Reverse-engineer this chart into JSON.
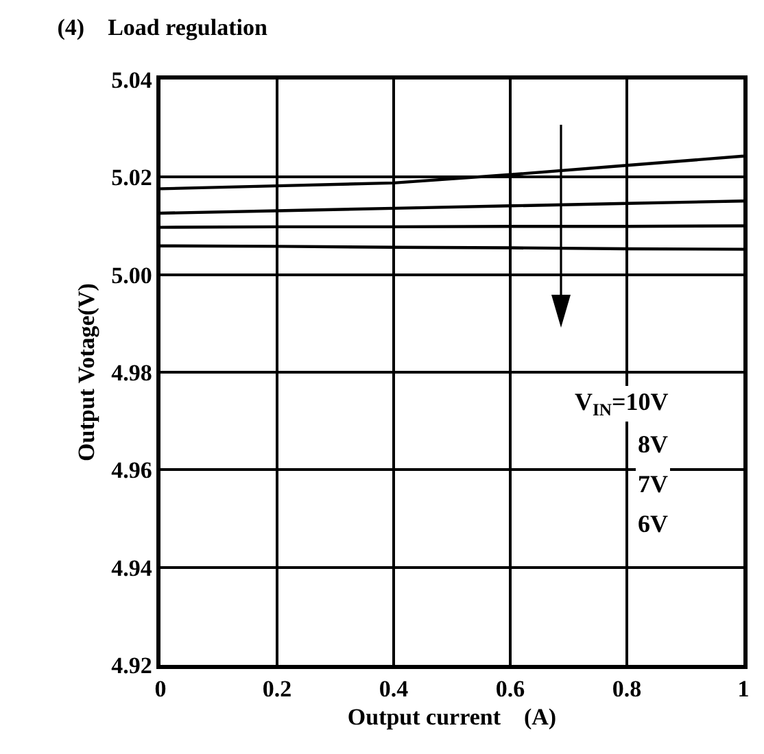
{
  "chart_data": {
    "type": "line",
    "title": "(4)    Load regulation",
    "xlabel": "Output current    (A)",
    "ylabel": "Output Votage(V)",
    "x": [
      0,
      0.2,
      0.4,
      0.6,
      0.8,
      1
    ],
    "series": [
      {
        "color": "#000000",
        "values": [
          5.0176,
          5.0182,
          5.0188,
          5.0205,
          5.0224,
          5.0243
        ]
      },
      {
        "color": "#000000",
        "values": [
          5.0126,
          5.0131,
          5.0136,
          5.0141,
          5.0146,
          5.0151
        ]
      },
      {
        "color": "#000000",
        "values": [
          5.0097,
          5.0098,
          5.0098,
          5.0099,
          5.0099,
          5.01
        ]
      },
      {
        "color": "#000000",
        "values": [
          5.0059,
          5.0058,
          5.0056,
          5.0055,
          5.0053,
          5.0052
        ]
      }
    ],
    "xlim": [
      0,
      1
    ],
    "xticks": [
      0,
      0.2,
      0.4,
      0.6,
      0.8,
      1
    ],
    "ylim": [
      4.92,
      5.04
    ],
    "yticks": [
      4.92,
      4.94,
      4.96,
      4.98,
      {
        "value": 5,
        "label": "5.00"
      },
      5.02,
      5.04
    ],
    "annotations": [
      "V$_{IN}$=10V",
      "8V",
      "7V",
      "6V"
    ],
    "grid": true,
    "marker": "none",
    "line_style": "solid"
  }
}
